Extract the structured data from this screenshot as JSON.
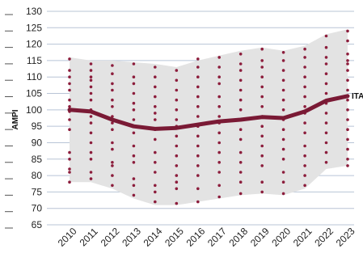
{
  "chart_data": {
    "type": "line",
    "title": "",
    "xlabel": "",
    "ylabel": "AMPI",
    "ylim": [
      65,
      130
    ],
    "yticks": [
      65,
      70,
      75,
      80,
      85,
      90,
      95,
      100,
      105,
      110,
      115,
      120,
      125,
      130
    ],
    "grid": true,
    "categories": [
      "2010",
      "2011",
      "2012",
      "2013",
      "2014",
      "2015",
      "2016",
      "2017",
      "2018",
      "2019",
      "2020",
      "2021",
      "2022",
      "2023"
    ],
    "series": [
      {
        "name": "ITA",
        "values": [
          100,
          99.5,
          97,
          95,
          94.2,
          94.5,
          95.5,
          96.5,
          97,
          97.8,
          97.5,
          99.5,
          102.8,
          104.2
        ]
      }
    ],
    "band": {
      "upper": [
        116,
        115,
        115,
        114.5,
        114,
        113,
        115,
        116.5,
        118,
        119,
        118,
        119.5,
        123,
        124.5
      ],
      "lower": [
        78,
        78,
        76,
        73,
        71,
        71,
        72,
        73,
        74,
        74.5,
        74,
        76,
        82,
        83
      ]
    },
    "points": [
      [
        115.5,
        112,
        110,
        108,
        106,
        103,
        101,
        99.5,
        97,
        94,
        87,
        85,
        82,
        81,
        78
      ],
      [
        114,
        112,
        110,
        109,
        107,
        105,
        103,
        100,
        98,
        96,
        93,
        90,
        87,
        85,
        81,
        79
      ],
      [
        113.5,
        111,
        108,
        106,
        103,
        101,
        98,
        96,
        94,
        90,
        88,
        84,
        83,
        80,
        77
      ],
      [
        114,
        110,
        108,
        105,
        102,
        100,
        97,
        95,
        93,
        89,
        86,
        84,
        79,
        77,
        74
      ],
      [
        113,
        110,
        107,
        104,
        101,
        99,
        97,
        94,
        91,
        87,
        84,
        81,
        77,
        75,
        72
      ],
      [
        112,
        109,
        106,
        103,
        100,
        97,
        95,
        92,
        89,
        86,
        83,
        80,
        78,
        76,
        71.5
      ],
      [
        115.5,
        113,
        110,
        107,
        104,
        101,
        98,
        95,
        92,
        89,
        86,
        83,
        80,
        76,
        72
      ],
      [
        116,
        113,
        110,
        108,
        104,
        101,
        98,
        96,
        93,
        90,
        87,
        84,
        81,
        77,
        73.5
      ],
      [
        117,
        114,
        112,
        109,
        106,
        103,
        100,
        97,
        94,
        91,
        87,
        84,
        81,
        78,
        74.5
      ],
      [
        118.5,
        115,
        113,
        110,
        107,
        104,
        101,
        98,
        95,
        92,
        89,
        86,
        83,
        78,
        75
      ],
      [
        117.5,
        115,
        112,
        109,
        106,
        103,
        100,
        97,
        94,
        91,
        88,
        85,
        81,
        78,
        74.5
      ],
      [
        118.5,
        116,
        113,
        110,
        107,
        104,
        101,
        99,
        96,
        93,
        89,
        86,
        83,
        80,
        77
      ],
      [
        122.5,
        119,
        116,
        114,
        111,
        108,
        105,
        102,
        99,
        96,
        93,
        90,
        87,
        84
      ],
      [
        124,
        121,
        117,
        115,
        114,
        112,
        109,
        106,
        103,
        100,
        97,
        94,
        91,
        88,
        85,
        83
      ]
    ],
    "colors": {
      "line": "#7a1a35",
      "points": "#8c1d3c",
      "band": "#e3e3e3",
      "grid": "#b8c4d6"
    },
    "end_label": "ITA"
  }
}
